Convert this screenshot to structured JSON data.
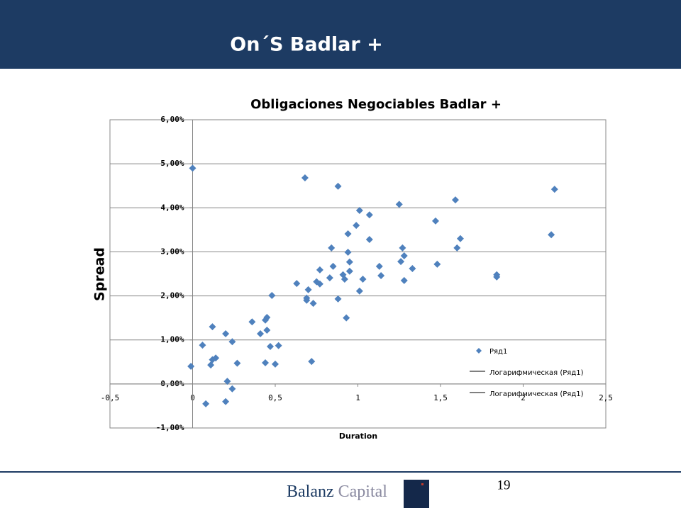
{
  "slide": {
    "title": "On´S Badlar +",
    "brand_first": "Balanz",
    "brand_second": "Capital",
    "page_number": "19"
  },
  "chart_data": {
    "type": "scatter",
    "title": "Obligaciones Negociables Badlar +",
    "x_label": "Duration",
    "y_label": "Spread",
    "xlim": [
      -0.5,
      2.5
    ],
    "xticks": [
      {
        "value": -0.5,
        "label": "-0,5"
      },
      0,
      {
        "value": 0.5,
        "label": "0,5"
      },
      1,
      {
        "value": 1.5,
        "label": "1,5"
      },
      2,
      {
        "value": 2.5,
        "label": "2,5"
      }
    ],
    "ylim": [
      -1,
      6
    ],
    "yticks": [
      {
        "value": -1,
        "label": "-1,00%"
      },
      {
        "value": 0,
        "label": "0,00%"
      },
      {
        "value": 1,
        "label": "1,00%"
      },
      {
        "value": 2,
        "label": "2,00%"
      },
      {
        "value": 3,
        "label": "3,00%"
      },
      {
        "value": 4,
        "label": "4,00%"
      },
      {
        "value": 5,
        "label": "5,00%"
      },
      {
        "value": 6,
        "label": "6,00%"
      }
    ],
    "grid": true,
    "legend": [
      "Логарифмическая (Ряд1)",
      "Логарифмическая (Ряд1)"
    ],
    "series": [
      {
        "name": "Ряд1",
        "color": "#4f81bd",
        "x": [
          0,
          0.68,
          0.88,
          2.19,
          1.59,
          1.25,
          1.01,
          1.07,
          1.47,
          0.99,
          0.94,
          2.17,
          1.62,
          1.07,
          0.84,
          1.27,
          1.6,
          0.94,
          1.28,
          1.26,
          0.95,
          1.48,
          1.13,
          0.85,
          1.33,
          0.77,
          0.95,
          0.91,
          1.14,
          1.84,
          1.84,
          0.83,
          0.92,
          1.03,
          1.28,
          0.75,
          0.77,
          0.63,
          0.7,
          1.01,
          0.48,
          0.69,
          0.69,
          0.88,
          0.73,
          0.93,
          0.45,
          0.44,
          0.36,
          0.12,
          0.45,
          0.41,
          0.2,
          0.24,
          0.06,
          0.52,
          0.47,
          0.14,
          0.12,
          0.27,
          0.44,
          0.5,
          0.11,
          0.72,
          -0.01,
          0.21,
          0.24,
          0.2,
          0.08
        ],
        "values": [
          4.9,
          4.68,
          4.49,
          4.42,
          4.18,
          4.08,
          3.94,
          3.84,
          3.7,
          3.6,
          3.41,
          3.39,
          3.3,
          3.28,
          3.09,
          3.09,
          3.09,
          2.99,
          2.91,
          2.78,
          2.77,
          2.72,
          2.67,
          2.67,
          2.62,
          2.59,
          2.56,
          2.48,
          2.46,
          2.48,
          2.43,
          2.41,
          2.38,
          2.38,
          2.35,
          2.32,
          2.27,
          2.28,
          2.14,
          2.11,
          2.01,
          1.95,
          1.9,
          1.93,
          1.83,
          1.5,
          1.51,
          1.45,
          1.41,
          1.3,
          1.22,
          1.14,
          1.14,
          0.96,
          0.88,
          0.87,
          0.85,
          0.59,
          0.55,
          0.47,
          0.48,
          0.45,
          0.43,
          0.51,
          0.4,
          0.06,
          -0.11,
          -0.4,
          -0.45
        ]
      }
    ]
  }
}
